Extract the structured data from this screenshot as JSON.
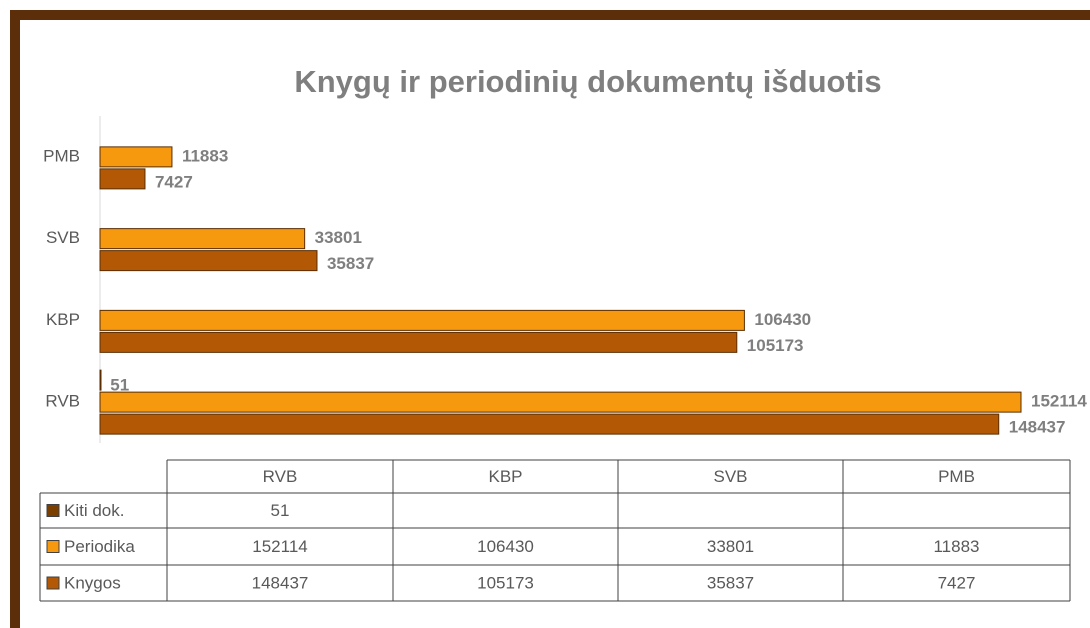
{
  "chart_data": {
    "type": "bar",
    "orientation": "horizontal",
    "title": "Knygų ir periodinių dokumentų išduotis",
    "categories": [
      "RVB",
      "KBP",
      "SVB",
      "PMB"
    ],
    "series": [
      {
        "name": "Kiti dok.",
        "color": "#7b3f00",
        "values": [
          51,
          null,
          null,
          null
        ]
      },
      {
        "name": "Periodika",
        "color": "#f7990f",
        "values": [
          152114,
          106430,
          33801,
          11883
        ]
      },
      {
        "name": "Knygos",
        "color": "#b35905",
        "values": [
          148437,
          105173,
          35837,
          7427
        ]
      }
    ],
    "data_table": true
  }
}
